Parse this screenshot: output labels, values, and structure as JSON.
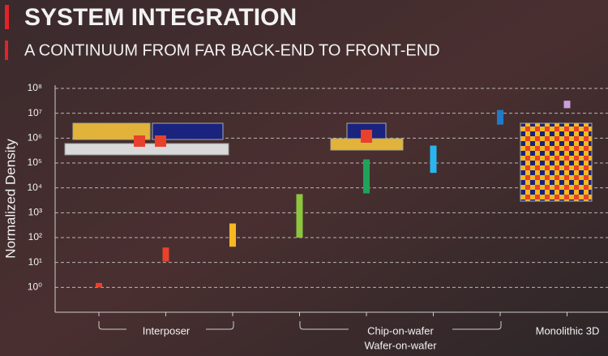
{
  "header": {
    "title": "SYSTEM INTEGRATION",
    "subtitle": "A CONTINUUM FROM FAR BACK-END TO FRONT-END"
  },
  "chart_data": {
    "type": "range-bar",
    "ylabel": "Normalized Density",
    "log_y": true,
    "grid": true,
    "ylim": [
      0.1,
      100000000
    ],
    "yticks": [
      {
        "value": 1,
        "label": "10⁰"
      },
      {
        "value": 10,
        "label": "10¹"
      },
      {
        "value": 100,
        "label": "10²"
      },
      {
        "value": 1000,
        "label": "10³"
      },
      {
        "value": 10000,
        "label": "10⁴"
      },
      {
        "value": 100000,
        "label": "10⁵"
      },
      {
        "value": 1000000,
        "label": "10⁶"
      },
      {
        "value": 10000000,
        "label": "10⁷"
      },
      {
        "value": 100000000,
        "label": "10⁸"
      }
    ],
    "categories": [
      null,
      null,
      null,
      null,
      null,
      null,
      null,
      null
    ],
    "low": [
      1,
      11,
      43,
      100,
      6000,
      40000,
      3500000,
      16000000
    ],
    "high": [
      1.5,
      40,
      370,
      5600,
      140000,
      500000,
      13500000,
      32000000
    ],
    "colors": [
      "#e8412c",
      "#e8412c",
      "#f5b820",
      "#8cc63f",
      "#1fa35a",
      "#29b6f0",
      "#1e7bc8",
      "#c9a0dc"
    ],
    "groups": [
      "Interposer",
      "Chip-on-wafer",
      "Wafer-on-wafer",
      "Monolithic 3D"
    ]
  }
}
